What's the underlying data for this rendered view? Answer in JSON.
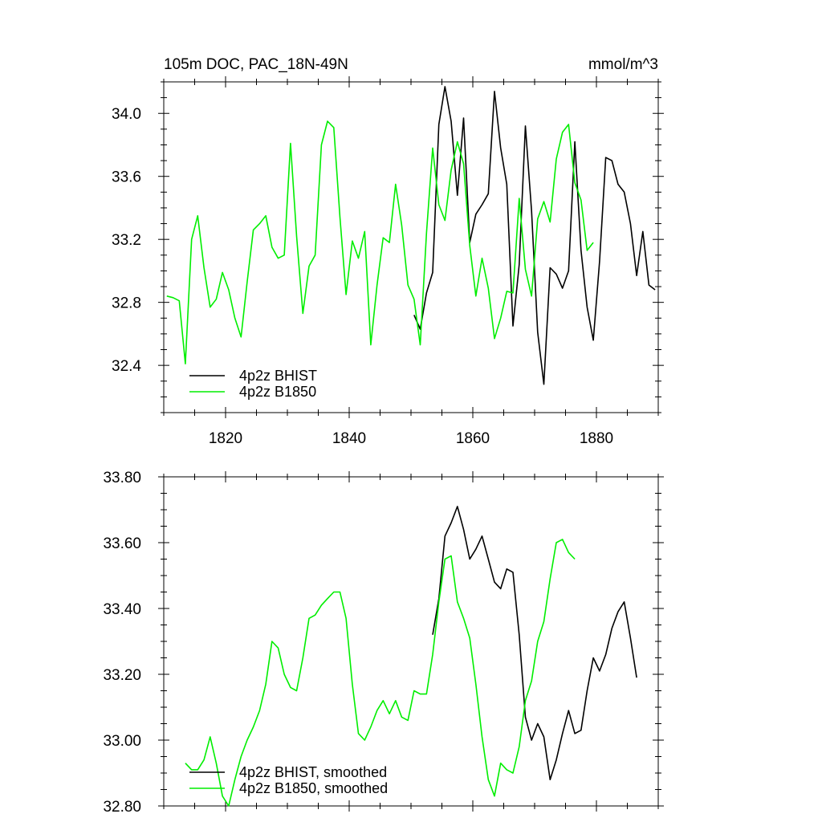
{
  "chart_data": [
    {
      "type": "line",
      "title": "105m DOC, PAC_18N-49N",
      "units": "mmol/m^3",
      "xlabel": "",
      "ylabel": "",
      "xlim": [
        1810,
        1890
      ],
      "ylim": [
        32.1,
        34.2
      ],
      "xticks": [
        1820,
        1840,
        1860,
        1880
      ],
      "xtick_labels": [
        "1820",
        "1840",
        "1860",
        "1880"
      ],
      "yticks": [
        32.4,
        32.8,
        33.2,
        33.6,
        34.0
      ],
      "ytick_labels": [
        "32.4",
        "32.8",
        "33.2",
        "33.6",
        "34.0"
      ],
      "grid": false,
      "legend_position": "bottom-left",
      "series": [
        {
          "name": "4p2z BHIST",
          "color": "#000000",
          "x": [
            1850.5,
            1851.5,
            1852.5,
            1853.5,
            1854.5,
            1855.5,
            1856.5,
            1857.5,
            1858.5,
            1859.5,
            1860.5,
            1861.5,
            1862.5,
            1863.5,
            1864.5,
            1865.5,
            1866.5,
            1867.5,
            1868.5,
            1869.5,
            1870.5,
            1871.5,
            1872.5,
            1873.5,
            1874.5,
            1875.5,
            1876.5,
            1877.5,
            1878.5,
            1879.5,
            1880.5,
            1881.5,
            1882.5,
            1883.5,
            1884.5,
            1885.5,
            1886.5,
            1887.5,
            1888.5,
            1889.5
          ],
          "y": [
            32.72,
            32.63,
            32.86,
            32.99,
            33.93,
            34.17,
            33.95,
            33.48,
            33.97,
            33.18,
            33.36,
            33.42,
            33.49,
            34.14,
            33.78,
            33.55,
            32.65,
            33.04,
            33.92,
            33.38,
            32.61,
            32.28,
            33.02,
            32.98,
            32.89,
            33.0,
            33.82,
            33.13,
            32.77,
            32.56,
            33.06,
            33.72,
            33.7,
            33.55,
            33.5,
            33.3,
            32.97,
            33.25,
            32.91,
            32.88
          ]
        },
        {
          "name": "4p2z B1850",
          "color": "#00ee00",
          "x": [
            1810.5,
            1811.5,
            1812.5,
            1813.5,
            1814.5,
            1815.5,
            1816.5,
            1817.5,
            1818.5,
            1819.5,
            1820.5,
            1821.5,
            1822.5,
            1823.5,
            1824.5,
            1825.5,
            1826.5,
            1827.5,
            1828.5,
            1829.5,
            1830.5,
            1831.5,
            1832.5,
            1833.5,
            1834.5,
            1835.5,
            1836.5,
            1837.5,
            1838.5,
            1839.5,
            1840.5,
            1841.5,
            1842.5,
            1843.5,
            1844.5,
            1845.5,
            1846.5,
            1847.5,
            1848.5,
            1849.5,
            1850.5,
            1851.5,
            1852.5,
            1853.5,
            1854.5,
            1855.5,
            1856.5,
            1857.5,
            1858.5,
            1859.5,
            1860.5,
            1861.5,
            1862.5,
            1863.5,
            1864.5,
            1865.5,
            1866.5,
            1867.5,
            1868.5,
            1869.5,
            1870.5,
            1871.5,
            1872.5,
            1873.5,
            1874.5,
            1875.5,
            1876.5,
            1877.5,
            1878.5,
            1879.5
          ],
          "y": [
            32.84,
            32.83,
            32.81,
            32.41,
            33.2,
            33.35,
            33.02,
            32.77,
            32.82,
            32.99,
            32.88,
            32.7,
            32.58,
            32.93,
            33.26,
            33.3,
            33.35,
            33.15,
            33.08,
            33.1,
            33.81,
            33.22,
            32.73,
            33.03,
            33.1,
            33.8,
            33.95,
            33.91,
            33.34,
            32.85,
            33.19,
            33.08,
            33.25,
            32.53,
            32.91,
            33.21,
            33.18,
            33.55,
            33.29,
            32.91,
            32.82,
            32.53,
            33.24,
            33.78,
            33.42,
            33.32,
            33.64,
            33.82,
            33.68,
            33.16,
            32.84,
            33.08,
            32.89,
            32.57,
            32.7,
            32.87,
            32.86,
            33.46,
            33.01,
            32.84,
            33.33,
            33.44,
            33.31,
            33.71,
            33.88,
            33.93,
            33.56,
            33.45,
            33.13,
            33.18
          ]
        }
      ]
    },
    {
      "type": "line",
      "title": "",
      "xlabel": "",
      "ylabel": "",
      "xlim": [
        1810,
        1890
      ],
      "ylim": [
        32.8,
        33.8
      ],
      "yticks": [
        32.8,
        33.0,
        33.2,
        33.4,
        33.6,
        33.8
      ],
      "ytick_labels": [
        "32.80",
        "33.00",
        "33.20",
        "33.40",
        "33.60",
        "33.80"
      ],
      "grid": false,
      "legend_position": "bottom-left",
      "series": [
        {
          "name": "4p2z BHIST, smoothed",
          "color": "#000000",
          "x": [
            1853.5,
            1854.5,
            1855.5,
            1856.5,
            1857.5,
            1858.5,
            1859.5,
            1860.5,
            1861.5,
            1862.5,
            1863.5,
            1864.5,
            1865.5,
            1866.5,
            1867.5,
            1868.5,
            1869.5,
            1870.5,
            1871.5,
            1872.5,
            1873.5,
            1874.5,
            1875.5,
            1876.5,
            1877.5,
            1878.5,
            1879.5,
            1880.5,
            1881.5,
            1882.5,
            1883.5,
            1884.5,
            1885.5,
            1886.5
          ],
          "y": [
            33.32,
            33.43,
            33.62,
            33.66,
            33.71,
            33.64,
            33.55,
            33.58,
            33.62,
            33.55,
            33.48,
            33.46,
            33.52,
            33.51,
            33.32,
            33.07,
            33.0,
            33.05,
            33.01,
            32.88,
            32.94,
            33.02,
            33.09,
            33.02,
            33.03,
            33.15,
            33.25,
            33.21,
            33.26,
            33.34,
            33.39,
            33.42,
            33.31,
            33.19
          ]
        },
        {
          "name": "4p2z B1850, smoothed",
          "color": "#00ee00",
          "x": [
            1813.5,
            1814.5,
            1815.5,
            1816.5,
            1817.5,
            1818.5,
            1819.5,
            1820.5,
            1821.5,
            1822.5,
            1823.5,
            1824.5,
            1825.5,
            1826.5,
            1827.5,
            1828.5,
            1829.5,
            1830.5,
            1831.5,
            1832.5,
            1833.5,
            1834.5,
            1835.5,
            1836.5,
            1837.5,
            1838.5,
            1839.5,
            1840.5,
            1841.5,
            1842.5,
            1843.5,
            1844.5,
            1845.5,
            1846.5,
            1847.5,
            1848.5,
            1849.5,
            1850.5,
            1851.5,
            1852.5,
            1853.5,
            1854.5,
            1855.5,
            1856.5,
            1857.5,
            1858.5,
            1859.5,
            1860.5,
            1861.5,
            1862.5,
            1863.5,
            1864.5,
            1865.5,
            1866.5,
            1867.5,
            1868.5,
            1869.5,
            1870.5,
            1871.5,
            1872.5,
            1873.5,
            1874.5,
            1875.5,
            1876.5
          ],
          "y": [
            32.93,
            32.91,
            32.91,
            32.94,
            33.01,
            32.93,
            32.83,
            32.8,
            32.88,
            32.95,
            33.0,
            33.04,
            33.09,
            33.17,
            33.3,
            33.28,
            33.2,
            33.16,
            33.15,
            33.25,
            33.37,
            33.38,
            33.41,
            33.43,
            33.45,
            33.45,
            33.37,
            33.17,
            33.02,
            33.0,
            33.04,
            33.09,
            33.12,
            33.08,
            33.12,
            33.07,
            33.06,
            33.15,
            33.14,
            33.14,
            33.26,
            33.42,
            33.55,
            33.56,
            33.42,
            33.37,
            33.31,
            33.17,
            33.01,
            32.88,
            32.83,
            32.93,
            32.91,
            32.9,
            32.98,
            33.12,
            33.18,
            33.3,
            33.36,
            33.49,
            33.6,
            33.61,
            33.57,
            33.55
          ]
        }
      ]
    }
  ]
}
